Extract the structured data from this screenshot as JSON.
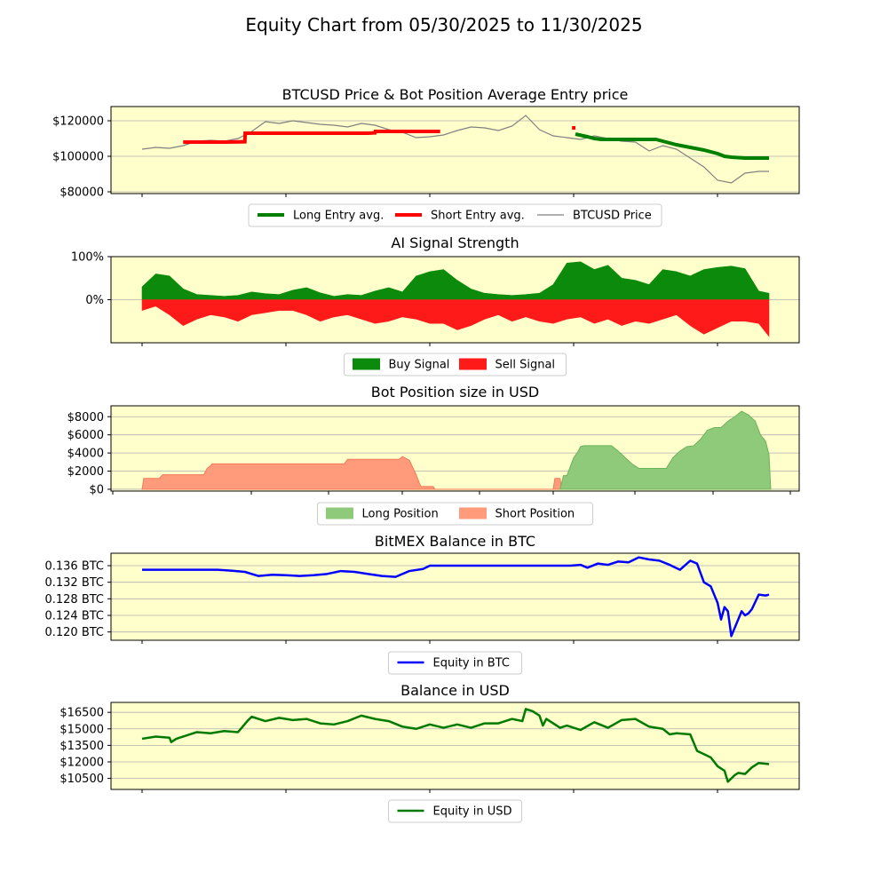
{
  "figure": {
    "title": "Equity Chart from 05/30/2025 to 11/30/2025",
    "colors": {
      "plot_bg": "#ffffcc",
      "grid": "#b0b0b0",
      "axis": "#000000",
      "long": "#008000",
      "short": "#ff0000",
      "price": "#808080",
      "buy_fill": "#0b8a0b",
      "sell_fill": "#ff1a1a",
      "long_pos": "#8fc97a",
      "short_pos": "#ff9a7a",
      "btc_line": "#0000ff",
      "usd_line": "#007a00"
    }
  },
  "chart_data": [
    {
      "type": "line",
      "title": "BTCUSD Price & Bot Position Average Entry price",
      "x_range": [
        0,
        183
      ],
      "ylim": [
        79000,
        128000
      ],
      "yticks": [
        80000,
        100000,
        120000
      ],
      "ytick_labels": [
        "$80000",
        "$100000",
        "$120000"
      ],
      "grid": "horizontal",
      "legend_position": "bottom-center",
      "legend": [
        "Long Entry avg.",
        "Short Entry avg.",
        "BTCUSD Price"
      ],
      "series": [
        {
          "name": "BTCUSD Price",
          "x": [
            0,
            4,
            8,
            12,
            16,
            20,
            24,
            28,
            32,
            36,
            40,
            44,
            48,
            52,
            56,
            60,
            64,
            68,
            72,
            76,
            80,
            84,
            88,
            92,
            96,
            100,
            104,
            108,
            112,
            116,
            120,
            124,
            128,
            132,
            136,
            140,
            144,
            148,
            152,
            156,
            160,
            164,
            168,
            172,
            176,
            180,
            183
          ],
          "values": [
            104000,
            105000,
            104500,
            106000,
            108500,
            109000,
            108500,
            110000,
            114000,
            119500,
            118500,
            120000,
            119000,
            118000,
            117500,
            116500,
            118500,
            117500,
            115000,
            113500,
            110500,
            111000,
            112000,
            114500,
            116500,
            116000,
            114500,
            117000,
            123000,
            115000,
            111500,
            110500,
            109500,
            111500,
            110000,
            108500,
            108000,
            103000,
            106000,
            104000,
            99000,
            94000,
            86500,
            85000,
            90500,
            91500,
            91500
          ]
        },
        {
          "name": "Short Entry avg.",
          "segments": [
            {
              "x": [
                12,
                18,
                24,
                30,
                30.1,
                36,
                42,
                48,
                54,
                60,
                66,
                68,
                68.1,
                74,
                80,
                87
              ],
              "values": [
                108000,
                108000,
                108000,
                108200,
                113000,
                113000,
                113000,
                113000,
                113000,
                113000,
                113000,
                113200,
                114000,
                114000,
                114000,
                114000
              ]
            },
            {
              "x": [
                125.5,
                126.5
              ],
              "values": [
                116000,
                116000
              ]
            }
          ]
        },
        {
          "name": "Long Entry avg.",
          "segments": [
            {
              "x": [
                126.5,
                130,
                132,
                134,
                140,
                146,
                150,
                152,
                156,
                160,
                164,
                168,
                170,
                172,
                176,
                180,
                183
              ],
              "values": [
                112500,
                111000,
                110000,
                109500,
                109500,
                109500,
                109500,
                108500,
                106500,
                105000,
                103500,
                101500,
                100000,
                99500,
                99000,
                99000,
                99000
              ]
            }
          ]
        }
      ]
    },
    {
      "type": "area",
      "title": "AI Signal Strength",
      "x_range": [
        0,
        183
      ],
      "ylim": [
        -1,
        1
      ],
      "yticks": [
        0,
        1
      ],
      "ytick_labels": [
        "0%",
        "100%"
      ],
      "grid": "horizontal",
      "legend_position": "bottom-center",
      "legend": [
        "Buy Signal",
        "Sell Signal"
      ],
      "series": [
        {
          "name": "Buy Signal",
          "x": [
            0,
            4,
            8,
            12,
            16,
            20,
            24,
            28,
            32,
            36,
            40,
            44,
            48,
            52,
            56,
            60,
            64,
            68,
            72,
            76,
            80,
            84,
            88,
            92,
            96,
            100,
            104,
            108,
            112,
            116,
            120,
            124,
            128,
            132,
            136,
            140,
            144,
            148,
            152,
            156,
            160,
            164,
            168,
            172,
            176,
            180,
            183
          ],
          "values": [
            0.3,
            0.6,
            0.55,
            0.25,
            0.12,
            0.1,
            0.08,
            0.1,
            0.18,
            0.14,
            0.12,
            0.22,
            0.28,
            0.16,
            0.08,
            0.12,
            0.1,
            0.2,
            0.28,
            0.18,
            0.55,
            0.65,
            0.7,
            0.45,
            0.25,
            0.15,
            0.12,
            0.1,
            0.12,
            0.15,
            0.35,
            0.85,
            0.88,
            0.7,
            0.8,
            0.5,
            0.45,
            0.35,
            0.7,
            0.65,
            0.55,
            0.7,
            0.75,
            0.78,
            0.72,
            0.2,
            0.15
          ]
        },
        {
          "name": "Sell Signal",
          "x": [
            0,
            4,
            8,
            12,
            16,
            20,
            24,
            28,
            32,
            36,
            40,
            44,
            48,
            52,
            56,
            60,
            64,
            68,
            72,
            76,
            80,
            84,
            88,
            92,
            96,
            100,
            104,
            108,
            112,
            116,
            120,
            124,
            128,
            132,
            136,
            140,
            144,
            148,
            152,
            156,
            160,
            164,
            168,
            172,
            176,
            180,
            183
          ],
          "values": [
            -0.25,
            -0.15,
            -0.35,
            -0.6,
            -0.45,
            -0.35,
            -0.4,
            -0.5,
            -0.35,
            -0.3,
            -0.25,
            -0.25,
            -0.35,
            -0.5,
            -0.4,
            -0.35,
            -0.45,
            -0.55,
            -0.5,
            -0.4,
            -0.45,
            -0.55,
            -0.55,
            -0.7,
            -0.6,
            -0.45,
            -0.35,
            -0.5,
            -0.4,
            -0.5,
            -0.55,
            -0.45,
            -0.4,
            -0.55,
            -0.45,
            -0.6,
            -0.5,
            -0.55,
            -0.45,
            -0.35,
            -0.6,
            -0.8,
            -0.65,
            -0.5,
            -0.5,
            -0.55,
            -0.85
          ]
        }
      ]
    },
    {
      "type": "area",
      "title": "Bot Position size in USD",
      "x_range": [
        0,
        183
      ],
      "ylim": [
        -200,
        9200
      ],
      "yticks": [
        0,
        2000,
        4000,
        6000,
        8000
      ],
      "ytick_labels": [
        "$0",
        "$2000",
        "$4000",
        "$6000",
        "$8000"
      ],
      "grid": "horizontal",
      "legend_position": "bottom-center",
      "legend": [
        "Long Position",
        "Short Position"
      ],
      "series": [
        {
          "name": "Short Position",
          "x": [
            0,
            0.5,
            5,
            6,
            18,
            19,
            20,
            20.5,
            59,
            60,
            75,
            76,
            78,
            80,
            81,
            81.5,
            82,
            85,
            85.5,
            120,
            120.5,
            122,
            122.5
          ],
          "values": [
            0,
            1200,
            1200,
            1600,
            1600,
            2300,
            2600,
            2800,
            2800,
            3300,
            3300,
            3600,
            3200,
            1600,
            600,
            300,
            300,
            300,
            0,
            0,
            1200,
            1200,
            0
          ]
        },
        {
          "name": "Long Position",
          "x": [
            122,
            123,
            124,
            125,
            126,
            127,
            128,
            129,
            131,
            133,
            135,
            137,
            139,
            141,
            143,
            145,
            147,
            149,
            151,
            153,
            155,
            157,
            159,
            161,
            163,
            165,
            167,
            169,
            171,
            173,
            175,
            177,
            179,
            180.5,
            182,
            183,
            183.5
          ],
          "values": [
            0,
            1500,
            1500,
            2500,
            3500,
            4000,
            4700,
            4800,
            4800,
            4800,
            4800,
            4800,
            4200,
            3500,
            2800,
            2300,
            2300,
            2300,
            2300,
            2300,
            3500,
            4200,
            4700,
            4800,
            5500,
            6500,
            6800,
            6800,
            7500,
            8000,
            8600,
            8200,
            7500,
            6000,
            5300,
            3800,
            0
          ]
        }
      ]
    },
    {
      "type": "line",
      "title": "BitMEX Balance in BTC",
      "x_range": [
        0,
        183
      ],
      "ylim": [
        0.118,
        0.139
      ],
      "yticks": [
        0.12,
        0.124,
        0.128,
        0.132,
        0.136
      ],
      "ytick_labels": [
        "0.120 BTC",
        "0.124 BTC",
        "0.128 BTC",
        "0.132 BTC",
        "0.136 BTC"
      ],
      "grid": "horizontal",
      "legend_position": "bottom-center",
      "legend": [
        "Equity in BTC"
      ],
      "series": [
        {
          "name": "Equity in BTC",
          "x": [
            0,
            10,
            14,
            18,
            22,
            26,
            30,
            34,
            38,
            42,
            46,
            50,
            54,
            58,
            62,
            66,
            70,
            74,
            78,
            82,
            84,
            88,
            100,
            110,
            120,
            125,
            128,
            130,
            133,
            136,
            139,
            142,
            145,
            148,
            151,
            154,
            157,
            160,
            162,
            164,
            166,
            167,
            168,
            169,
            170,
            171,
            172,
            173,
            174,
            175,
            176,
            177,
            178,
            180,
            182,
            183
          ],
          "values": [
            0.135,
            0.135,
            0.135,
            0.135,
            0.135,
            0.1348,
            0.1345,
            0.1335,
            0.1338,
            0.1337,
            0.1335,
            0.1337,
            0.134,
            0.1347,
            0.1345,
            0.134,
            0.1335,
            0.1333,
            0.1347,
            0.1352,
            0.136,
            0.136,
            0.136,
            0.136,
            0.136,
            0.136,
            0.1362,
            0.1355,
            0.1365,
            0.1362,
            0.137,
            0.1368,
            0.138,
            0.1375,
            0.1372,
            0.1362,
            0.135,
            0.1372,
            0.1365,
            0.132,
            0.131,
            0.129,
            0.127,
            0.123,
            0.126,
            0.125,
            0.119,
            0.121,
            0.123,
            0.125,
            0.124,
            0.1245,
            0.1255,
            0.129,
            0.1288,
            0.129
          ]
        }
      ]
    },
    {
      "type": "line",
      "title": "Balance in USD",
      "x_range": [
        0,
        183
      ],
      "ylim": [
        9500,
        17400
      ],
      "yticks": [
        10500,
        12000,
        13500,
        15000,
        16500
      ],
      "ytick_labels": [
        "$10500",
        "$12000",
        "$13500",
        "$15000",
        "$16500"
      ],
      "grid": "horizontal",
      "legend_position": "bottom-center",
      "legend": [
        "Equity in USD"
      ],
      "series": [
        {
          "name": "Equity in USD",
          "x": [
            0,
            4,
            8,
            8.5,
            10,
            12,
            16,
            20,
            24,
            28,
            31,
            32,
            36,
            40,
            44,
            48,
            52,
            56,
            60,
            64,
            68,
            72,
            76,
            80,
            84,
            88,
            92,
            96,
            100,
            104,
            108,
            111,
            112,
            114,
            116,
            117,
            118,
            120,
            122,
            124,
            128,
            132,
            136,
            140,
            144,
            148,
            152,
            154,
            156,
            160,
            162,
            164,
            166,
            168,
            170,
            171,
            172,
            173,
            174,
            176,
            178,
            180,
            183
          ],
          "values": [
            14100,
            14300,
            14200,
            13800,
            14100,
            14300,
            14700,
            14600,
            14800,
            14700,
            15800,
            16100,
            15700,
            16000,
            15800,
            15900,
            15500,
            15400,
            15700,
            16200,
            15900,
            15700,
            15200,
            15000,
            15400,
            15100,
            15400,
            15100,
            15500,
            15500,
            15900,
            15700,
            16800,
            16600,
            16200,
            15300,
            15900,
            15500,
            15100,
            15300,
            14900,
            15600,
            15100,
            15800,
            15900,
            15200,
            15000,
            14500,
            14600,
            14500,
            13000,
            12700,
            12400,
            11600,
            11200,
            10200,
            10500,
            10800,
            11000,
            10900,
            11500,
            11900,
            11800
          ]
        }
      ]
    }
  ]
}
